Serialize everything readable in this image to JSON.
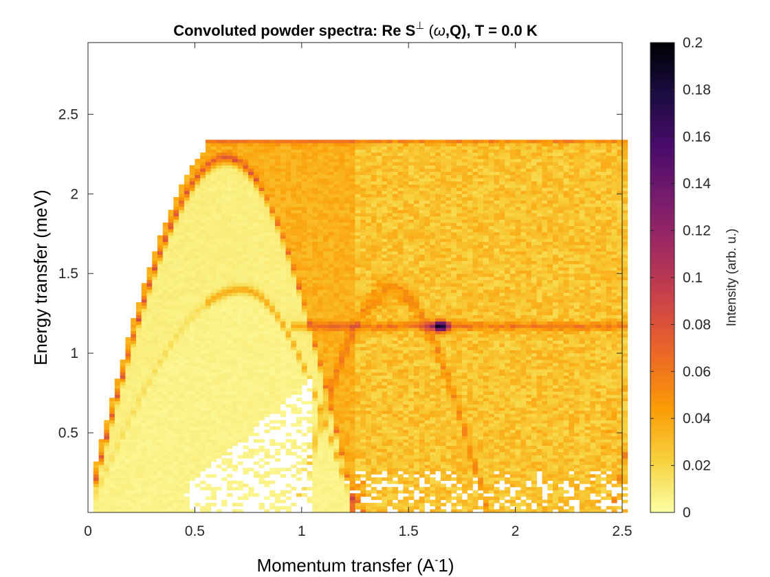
{
  "chart_data": {
    "type": "heatmap",
    "title": {
      "prefix": "Convoluted powder spectra: Re S",
      "superscript": "⊥",
      "omega": "ω",
      "suffix": ",Q), T =   0.0 K"
    },
    "xlabel": "Momentum transfer (A",
    "xlabel_sup": "-",
    "xlabel_tail": "1)",
    "ylabel": "Energy transfer (meV)",
    "xlim": [
      0,
      2.5
    ],
    "ylim": [
      0,
      2.95
    ],
    "x_ticks": [
      0,
      0.5,
      1,
      1.5,
      2,
      2.5
    ],
    "x_tick_labels": [
      "0",
      "0.5",
      "1",
      "1.5",
      "2",
      "2.5"
    ],
    "y_ticks": [
      0.5,
      1,
      1.5,
      2,
      2.5
    ],
    "y_tick_labels": [
      "0.5",
      "1",
      "1.5",
      "2",
      "2.5"
    ],
    "colorbar": {
      "label": "Intensity (arb. u.)",
      "range": [
        0,
        0.2
      ],
      "ticks": [
        0,
        0.02,
        0.04,
        0.06,
        0.08,
        0.1,
        0.12,
        0.14,
        0.16,
        0.18,
        0.2
      ],
      "tick_labels": [
        "0",
        "0.02",
        "0.04",
        "0.06",
        "0.08",
        "0.1",
        "0.12",
        "0.14",
        "0.16",
        "0.18",
        "0.2"
      ],
      "colormap": "inferno (reversed)",
      "colors": [
        "#fcffa4",
        "#f7d13d",
        "#fb9b06",
        "#ed6925",
        "#cf4446",
        "#a52c60",
        "#781c6d",
        "#4a0c6b",
        "#1b0c41",
        "#000004"
      ]
    },
    "features": {
      "energy_max": 2.35,
      "upper_dome": {
        "apex_q": 0.65,
        "apex_energy": 2.22,
        "end_q": 1.25
      },
      "lower_dome": {
        "apex_q": 0.72,
        "apex_energy": 1.4,
        "end_q": 1.25
      },
      "flat_band_energy": 1.17,
      "secondary_dome": {
        "apex_q": 1.42,
        "apex_energy": 1.4
      },
      "hotspot": {
        "q": 1.65,
        "energy": 1.17,
        "intensity": 0.14
      },
      "high_intensity_low_energy_q": [
        1.22,
        1.3
      ],
      "grid": false
    }
  }
}
